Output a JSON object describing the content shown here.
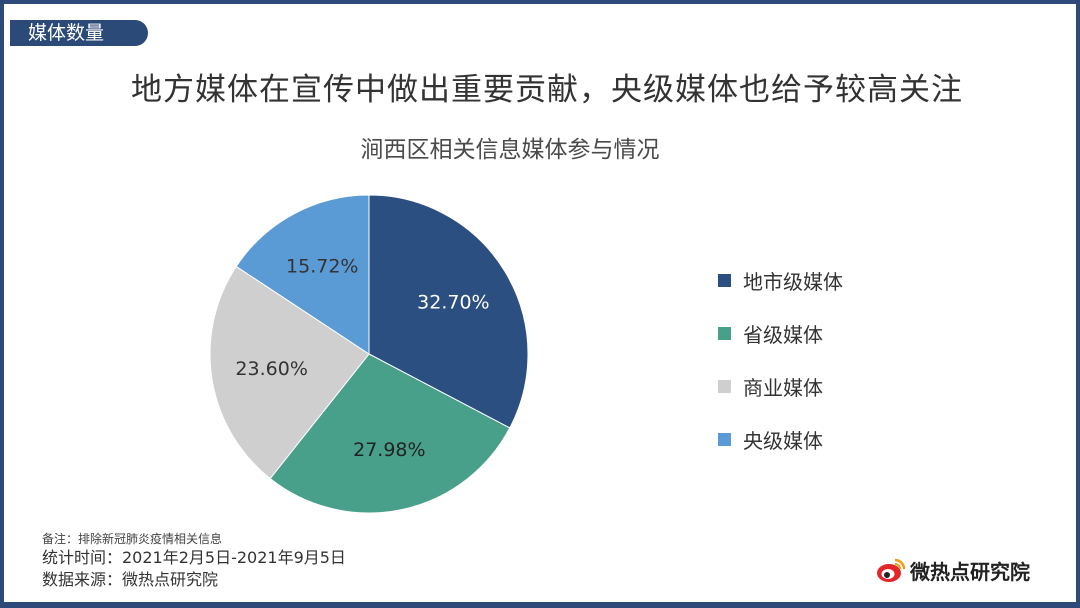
{
  "section_tag": "媒体数量",
  "headline": "地方媒体在宣传中做出重要贡献，央级媒体也给予较高关注",
  "chart_data": {
    "type": "pie",
    "title": "涧西区相关信息媒体参与情况",
    "slices": [
      {
        "name": "地市级媒体",
        "value": 32.7,
        "label": "32.70%",
        "color": "#2c4f82",
        "text_color": "#ffffff"
      },
      {
        "name": "省级媒体",
        "value": 27.98,
        "label": "27.98%",
        "color": "#48a08a",
        "text_color": "#222222"
      },
      {
        "name": "商业媒体",
        "value": 23.6,
        "label": "23.60%",
        "color": "#cfcfcf",
        "text_color": "#333333"
      },
      {
        "name": "央级媒体",
        "value": 15.72,
        "label": "15.72%",
        "color": "#5b9bd5",
        "text_color": "#333333"
      }
    ],
    "legend_position": "right"
  },
  "notes": {
    "remark": "备注：排除新冠肺炎疫情相关信息",
    "period": "统计时间：2021年2月5日-2021年9月5日",
    "source": "数据来源：微热点研究院"
  },
  "logo": {
    "text": "微热点研究院",
    "icon": "weibo-eye-icon",
    "icon_color": "#e2262b"
  }
}
